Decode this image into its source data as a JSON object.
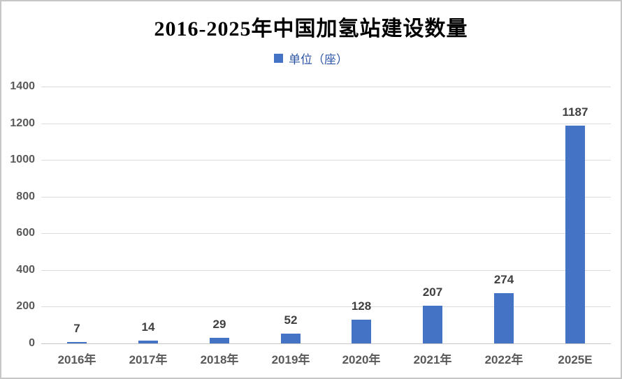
{
  "header": {
    "title": "2016-2025年中国加氢站建设数量"
  },
  "legend": {
    "label": "单位（座）",
    "marker_color": "#4472C4",
    "text_color": "#2d55a5"
  },
  "chart_data": {
    "type": "bar",
    "title": "2016-2025年中国加氢站建设数量",
    "categories": [
      "2016年",
      "2017年",
      "2018年",
      "2019年",
      "2020年",
      "2021年",
      "2022年",
      "2025E"
    ],
    "values": [
      7,
      14,
      29,
      52,
      128,
      207,
      274,
      1187
    ],
    "series_name": "单位（座）",
    "xlabel": "",
    "ylabel": "",
    "ylim": [
      0,
      1400
    ],
    "ytick_step": 200,
    "grid": true,
    "legend_position": "top",
    "value_labels": true,
    "bar_color": "#4472C4",
    "gridline_color": "#dcdcdc",
    "axis_line_color": "#c6c6c6",
    "value_label_color": "#404040",
    "tick_label_color": "#595959"
  }
}
